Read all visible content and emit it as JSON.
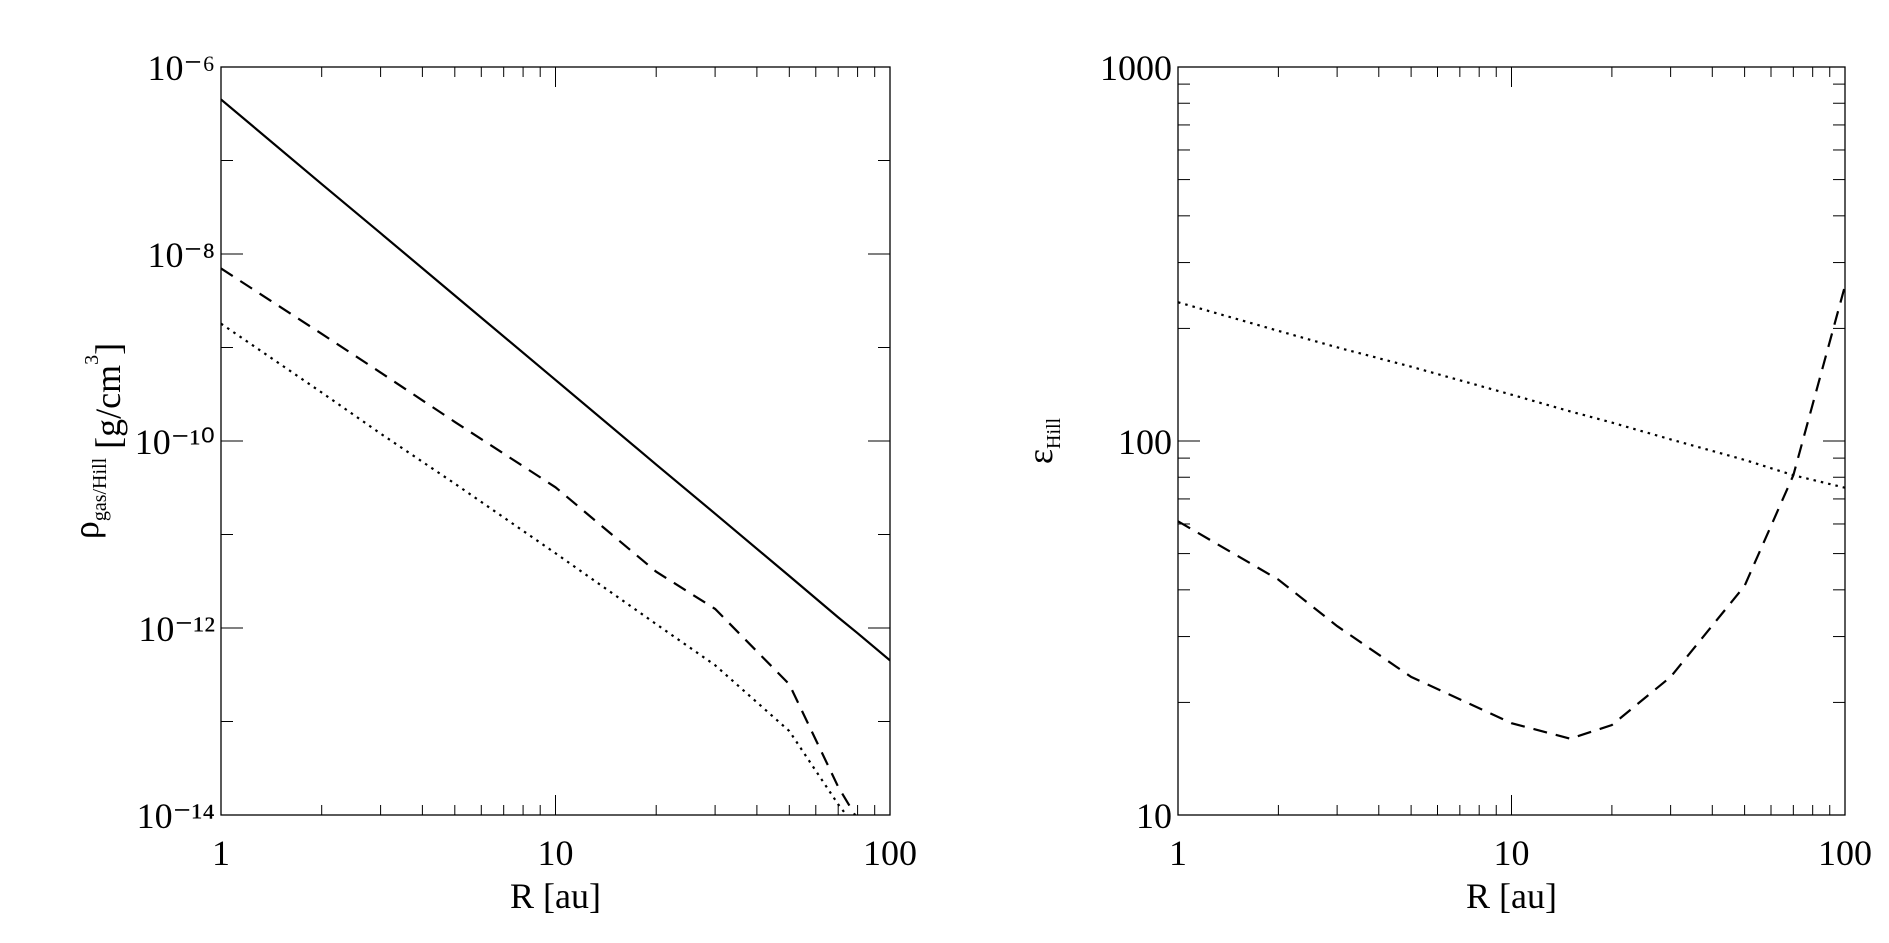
{
  "chart_data": [
    {
      "type": "line",
      "log_x": true,
      "log_y": true,
      "xlabel": "R [au]",
      "ylabel": {
        "main": "ρ",
        "sub": "gas/Hill",
        "rest": " [g/cm",
        "sup": "3",
        "end": "]"
      },
      "x": [
        1,
        2,
        3,
        5,
        10,
        20,
        30,
        50,
        70,
        80,
        100
      ],
      "series": [
        {
          "color": "#000000",
          "dash": "solid",
          "values": [
            4.5e-07,
            5.6e-08,
            1.67e-08,
            3.6e-09,
            4.5e-10,
            5.6e-11,
            1.67e-11,
            3.6e-12,
            1.3e-12,
            8.8e-13,
            4.5e-13
          ]
        },
        {
          "color": "#000000",
          "dash": "dashed",
          "values": [
            7e-09,
            1.4e-09,
            5.4e-10,
            1.6e-10,
            3.2e-11,
            4e-12,
            1.6e-12,
            2.5e-13,
            2e-14,
            9e-15,
            null
          ]
        },
        {
          "color": "#000000",
          "dash": "dotted",
          "values": [
            1.8e-09,
            3.3e-10,
            1.2e-10,
            3.5e-11,
            6.3e-12,
            1.1e-12,
            4e-13,
            7.9e-14,
            1.3e-14,
            7e-15,
            null
          ]
        }
      ],
      "xlim": [
        1,
        100
      ],
      "xticks": [
        1,
        10,
        100
      ],
      "ylim": [
        1e-14,
        1e-06
      ],
      "yticks": [
        {
          "value": 1e-14,
          "label": "10⁻¹⁴"
        },
        {
          "value": 1e-12,
          "label": "10⁻¹²"
        },
        {
          "value": 1e-10,
          "label": "10⁻¹⁰"
        },
        {
          "value": 1e-08,
          "label": "10⁻⁸"
        },
        {
          "value": 1e-06,
          "label": "10⁻⁶"
        }
      ]
    },
    {
      "type": "line",
      "log_x": true,
      "log_y": true,
      "xlabel": "R [au]",
      "ylabel": {
        "main": "ε",
        "sub": "Hill"
      },
      "x": [
        1,
        2,
        3,
        5,
        10,
        15,
        20,
        30,
        50,
        70,
        100
      ],
      "series": [
        {
          "color": "#000000",
          "dash": "dashed",
          "values": [
            61,
            42.6,
            32,
            23.4,
            17.6,
            16,
            17.4,
            23.4,
            41,
            81,
            260
          ]
        },
        {
          "color": "#000000",
          "dash": "dotted",
          "values": [
            235,
            197,
            178,
            158,
            133,
            120,
            112,
            101,
            89,
            81,
            75
          ]
        }
      ],
      "xlim": [
        1,
        100
      ],
      "xticks": [
        1,
        10,
        100
      ],
      "ylim": [
        10,
        1000
      ],
      "yticks": [
        10,
        100,
        1000
      ]
    }
  ]
}
